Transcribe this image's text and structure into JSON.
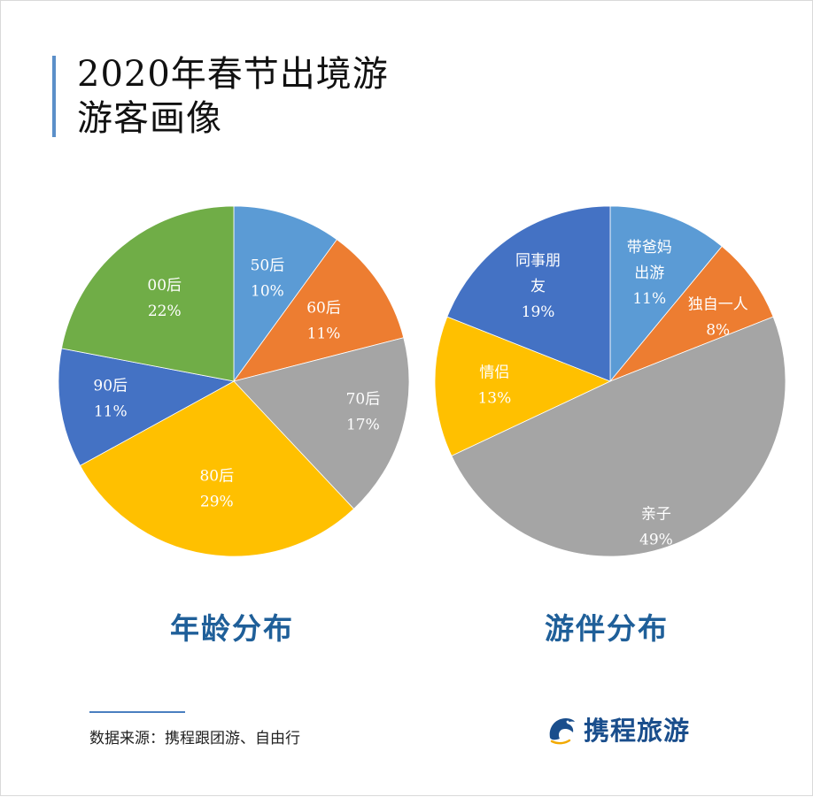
{
  "header": {
    "title_line1": "2020年春节出境游",
    "title_line2": "游客画像"
  },
  "colors": {
    "accent_bar": "#5b8fc9",
    "caption": "#1f5f99",
    "logo": "#1a4e8c"
  },
  "chart_data": [
    {
      "type": "pie",
      "title": "年龄分布",
      "start_angle_deg": 0,
      "direction": "clockwise",
      "slices": [
        {
          "name": "50后",
          "value": 10,
          "label": "10%",
          "color": "#5b9bd5"
        },
        {
          "name": "60后",
          "value": 11,
          "label": "11%",
          "color": "#ed7d31"
        },
        {
          "name": "70后",
          "value": 17,
          "label": "17%",
          "color": "#a5a5a5"
        },
        {
          "name": "80后",
          "value": 29,
          "label": "29%",
          "color": "#ffc000"
        },
        {
          "name": "90后",
          "value": 11,
          "label": "11%",
          "color": "#4472c4"
        },
        {
          "name": "00后",
          "value": 22,
          "label": "22%",
          "color": "#70ad47"
        }
      ]
    },
    {
      "type": "pie",
      "title": "游伴分布",
      "start_angle_deg": 0,
      "direction": "clockwise",
      "slices": [
        {
          "name": "带爸妈出游",
          "value": 11,
          "label": "11%",
          "color": "#5b9bd5"
        },
        {
          "name": "独自一人",
          "value": 8,
          "label": "8%",
          "color": "#ed7d31"
        },
        {
          "name": "亲子",
          "value": 49,
          "label": "49%",
          "color": "#a5a5a5"
        },
        {
          "name": "情侣",
          "value": 13,
          "label": "13%",
          "color": "#ffc000"
        },
        {
          "name": "同事朋友",
          "value": 19,
          "label": "19%",
          "color": "#4472c4"
        }
      ]
    }
  ],
  "footer": {
    "source_text": "数据来源：携程跟团游、自由行",
    "logo_text": "携程旅游",
    "logo_icon": "dolphin-icon"
  }
}
